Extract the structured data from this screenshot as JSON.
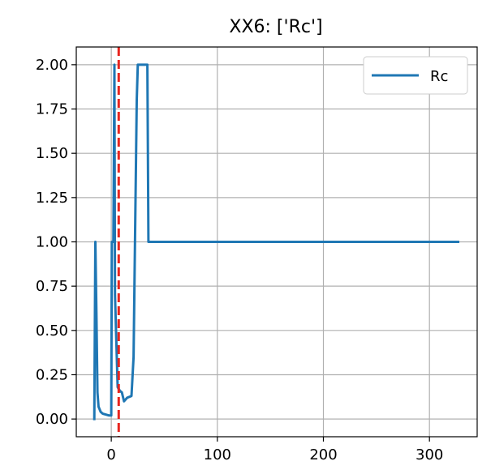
{
  "chart_data": {
    "type": "line",
    "title": "XX6: ['Rc']",
    "xlabel": "",
    "ylabel": "",
    "xlim": [
      -33,
      345
    ],
    "ylim": [
      -0.1,
      2.1
    ],
    "xticks": [
      0,
      100,
      200,
      300
    ],
    "xtick_labels": [
      "0",
      "100",
      "200",
      "300"
    ],
    "yticks": [
      0.0,
      0.25,
      0.5,
      0.75,
      1.0,
      1.25,
      1.5,
      1.75,
      2.0
    ],
    "ytick_labels": [
      "0.00",
      "0.25",
      "0.50",
      "0.75",
      "1.00",
      "1.25",
      "1.50",
      "1.75",
      "2.00"
    ],
    "grid": true,
    "legend_position": "top-right",
    "series": [
      {
        "name": "Rc",
        "color": "#1f77b4",
        "x": [
          -16,
          -15,
          -14,
          -13,
          -12,
          -10,
          -8,
          -5,
          -2,
          0,
          0.5,
          2,
          3,
          3.5,
          6,
          8,
          10,
          12,
          15,
          19,
          21,
          24,
          25,
          33,
          34,
          35,
          327
        ],
        "y": [
          0.0,
          1.0,
          0.6,
          0.15,
          0.07,
          0.04,
          0.03,
          0.025,
          0.02,
          0.02,
          1.0,
          1.0,
          2.0,
          0.7,
          0.18,
          0.16,
          0.15,
          0.1,
          0.12,
          0.13,
          0.35,
          1.8,
          2.0,
          2.0,
          2.0,
          1.0,
          1.0
        ]
      }
    ],
    "vlines": [
      {
        "x": 7,
        "color": "#e8251f",
        "style": "dashed"
      }
    ]
  }
}
